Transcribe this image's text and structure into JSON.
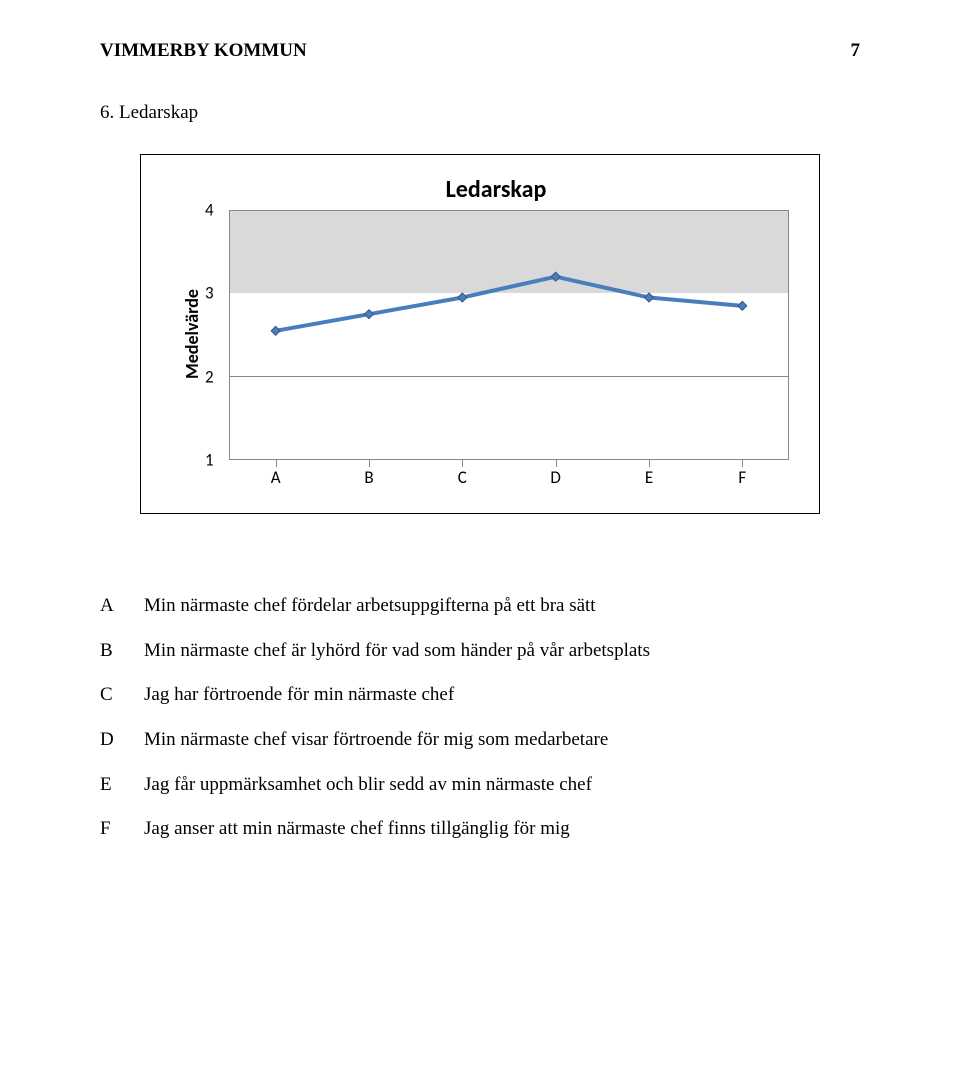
{
  "header": {
    "org": "VIMMERBY KOMMUN",
    "page_number": "7"
  },
  "section_title": "6. Ledarskap",
  "chart": {
    "type": "line",
    "title": "Ledarskap",
    "y_axis_label": "Medelvärde",
    "ylim": [
      1,
      4
    ],
    "ytick_step": 1,
    "yticks": [
      "4",
      "3",
      "2",
      "1"
    ],
    "categories": [
      "A",
      "B",
      "C",
      "D",
      "E",
      "F"
    ],
    "values": [
      2.55,
      2.75,
      2.95,
      3.2,
      2.95,
      2.85
    ],
    "line_color": "#4a7ebb",
    "line_width": 4,
    "marker_fill": "#4a7ebb",
    "marker_stroke": "#33558c",
    "marker_size": 9,
    "plot_band_fill": "#d9d9d9",
    "grid_color": "#888888",
    "background_color": "#ffffff",
    "label_fontsize": 17,
    "title_fontsize": 24,
    "axis_label_fontsize": 18
  },
  "definitions": [
    {
      "key": "A",
      "text": "Min närmaste chef fördelar arbetsuppgifterna på ett bra sätt"
    },
    {
      "key": "B",
      "text": "Min närmaste chef är lyhörd för vad som händer på vår arbetsplats"
    },
    {
      "key": "C",
      "text": "Jag har förtroende för min närmaste chef"
    },
    {
      "key": "D",
      "text": "Min närmaste chef visar förtroende för mig som medarbetare"
    },
    {
      "key": "E",
      "text": "Jag får uppmärksamhet och blir sedd av min närmaste chef"
    },
    {
      "key": "F",
      "text": "Jag anser att min närmaste chef finns tillgänglig för mig"
    }
  ]
}
